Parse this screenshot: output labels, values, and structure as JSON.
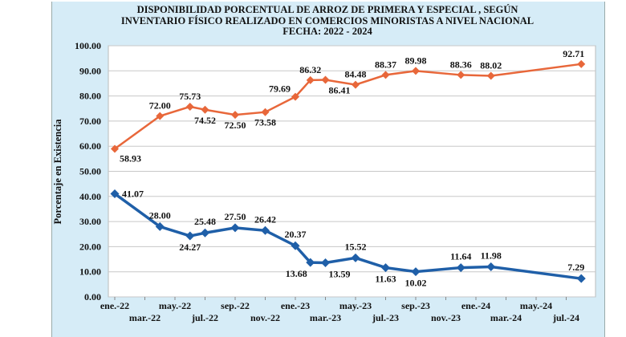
{
  "chart_data": {
    "type": "line",
    "title": [
      "DISPONIBILIDAD PORCENTUAL DE ARROZ DE PRIMERA Y ESPECIAL , SEGÚN",
      "INVENTARIO FÍSICO REALIZADO EN COMERCIOS MINORISTAS A NIVEL NACIONAL",
      "FECHA: 2022 - 2024"
    ],
    "xlabel": "",
    "ylabel": "Porcentaje en Existencia",
    "ylim": [
      0,
      100
    ],
    "yticks": [
      "0.00",
      "10.00",
      "20.00",
      "30.00",
      "40.00",
      "50.00",
      "60.00",
      "70.00",
      "80.00",
      "90.00",
      "100.00"
    ],
    "xtick_labels": [
      "ene.-22",
      "mar.-22",
      "may.-22",
      "jul.-22",
      "sep.-22",
      "nov.-22",
      "ene.-23",
      "mar.-23",
      "may.-23",
      "jul.-23",
      "sep.-23",
      "nov.-23",
      "ene.-24",
      "mar.-24",
      "may.-24",
      "jul.-24"
    ],
    "grid": true,
    "x": [
      "2022-01",
      "2022-04",
      "2022-06",
      "2022-07",
      "2022-09",
      "2022-11",
      "2023-01",
      "2023-02",
      "2023-03",
      "2023-05",
      "2023-07",
      "2023-09",
      "2023-12",
      "2024-02",
      "2024-08"
    ],
    "series": [
      {
        "color": "#e8673a",
        "marker": "diamond",
        "values": [
          58.93,
          72.0,
          75.73,
          74.52,
          72.5,
          73.58,
          79.69,
          86.32,
          86.41,
          84.48,
          88.37,
          89.98,
          88.36,
          88.02,
          92.71
        ]
      },
      {
        "color": "#1f5fa8",
        "marker": "diamond",
        "values": [
          41.07,
          28.0,
          24.27,
          25.48,
          27.5,
          26.42,
          20.37,
          13.68,
          13.59,
          15.52,
          11.63,
          10.02,
          11.64,
          11.98,
          7.29
        ]
      }
    ]
  }
}
